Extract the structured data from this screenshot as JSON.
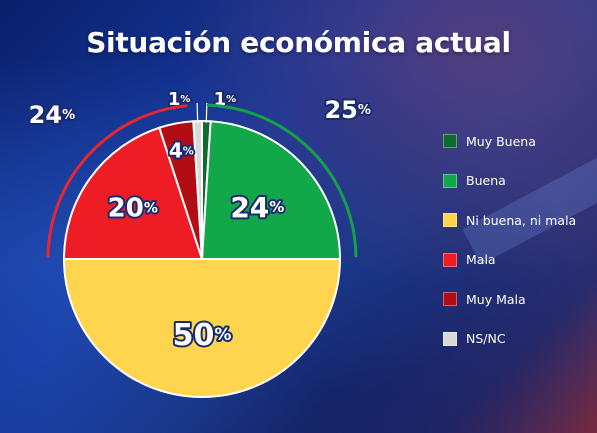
{
  "chart_data": {
    "type": "pie",
    "title": "Situación económica actual",
    "categories": [
      "Muy Buena",
      "Buena",
      "Ni buena, ni mala",
      "Mala",
      "Muy Mala",
      "NS/NC"
    ],
    "values": [
      1,
      24,
      50,
      20,
      4,
      1
    ],
    "labels": [
      "1",
      "24",
      "50",
      "20",
      "4",
      "1"
    ],
    "unit": "%",
    "colors": [
      "#0f6b2a",
      "#11a84a",
      "#ffd54f",
      "#ee1c25",
      "#b20d12",
      "#d9d9d9"
    ],
    "group_labels": [
      {
        "value": "25",
        "unit": "%",
        "color": "#13a14a",
        "covers": [
          "Muy Buena",
          "Buena"
        ]
      },
      {
        "value": "24",
        "unit": "%",
        "color": "#e8262e",
        "covers": [
          "Mala",
          "Muy Mala"
        ]
      }
    ],
    "legend_position": "right"
  }
}
